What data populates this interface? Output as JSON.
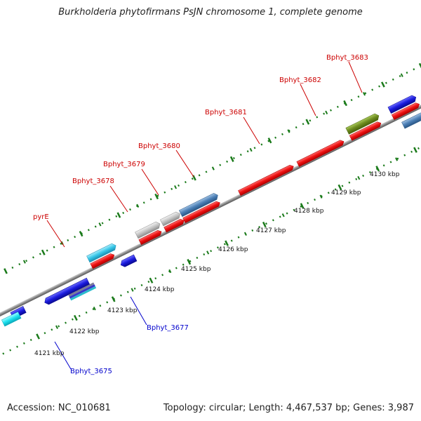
{
  "title": "Burkholderia phytofirmans PsJN chromosome 1, complete genome",
  "footer": {
    "accession": "Accession: NC_010681",
    "summary": "Topology: circular; Length: 4,467,537 bp; Genes: 3,987"
  },
  "colors": {
    "background": "#ffffff",
    "backbone": "#8c8c8c",
    "tick_marks": "#1a7a1a",
    "label_forward": "#cc0000",
    "label_reverse": "#0000cc",
    "cds": "#ee1111",
    "forward_gene": "#36c6e8",
    "reverse_gene": "#1a1adc",
    "gray_gene": "#bdbdbd",
    "steelblue_gene": "#4a7eb5",
    "olive_gene": "#6c8a1e"
  },
  "scale": {
    "unit": "kbp",
    "ticks": [
      4121,
      4122,
      4123,
      4124,
      4125,
      4126,
      4127,
      4128,
      4129,
      4130
    ],
    "tick_labels": [
      "4121 kbp",
      "4122 kbp",
      "4123 kbp",
      "4124 kbp",
      "4125 kbp",
      "4126 kbp",
      "4127 kbp",
      "4128 kbp",
      "4129 kbp",
      "4130 kbp"
    ]
  },
  "gene_labels": {
    "forward": [
      "pyrE",
      "Bphyt_3678",
      "Bphyt_3679",
      "Bphyt_3680",
      "Bphyt_3681",
      "Bphyt_3682",
      "Bphyt_3683"
    ],
    "reverse": [
      "Bphyt_3675",
      "Bphyt_3677"
    ]
  },
  "features": [
    {
      "name": "forward-gene-pyrE",
      "type": "gene",
      "strand": "+",
      "color": "forward_gene"
    },
    {
      "name": "forward-cds-pyrE",
      "type": "cds",
      "strand": "+",
      "color": "cds"
    },
    {
      "name": "forward-gene-3678",
      "type": "gene",
      "strand": "+",
      "color": "gray_gene"
    },
    {
      "name": "forward-cds-3678",
      "type": "cds",
      "strand": "+",
      "color": "cds"
    },
    {
      "name": "forward-gene-3679",
      "type": "gene",
      "strand": "+",
      "color": "gray_gene"
    },
    {
      "name": "forward-cds-3679",
      "type": "cds",
      "strand": "+",
      "color": "cds"
    },
    {
      "name": "forward-gene-3680",
      "type": "gene",
      "strand": "+",
      "color": "steelblue_gene"
    },
    {
      "name": "forward-cds-3680",
      "type": "cds",
      "strand": "+",
      "color": "cds"
    },
    {
      "name": "forward-cds-3681",
      "type": "cds",
      "strand": "+",
      "color": "cds"
    },
    {
      "name": "forward-cds-3682",
      "type": "cds",
      "strand": "+",
      "color": "cds"
    },
    {
      "name": "forward-gene-3683",
      "type": "gene",
      "strand": "+",
      "color": "olive_gene"
    },
    {
      "name": "forward-cds-3683",
      "type": "cds",
      "strand": "+",
      "color": "cds"
    },
    {
      "name": "reverse-gene-3675",
      "type": "gene",
      "strand": "-",
      "color": "reverse_gene"
    },
    {
      "name": "reverse-gene-3677",
      "type": "gene",
      "strand": "-",
      "color": "reverse_gene"
    }
  ]
}
